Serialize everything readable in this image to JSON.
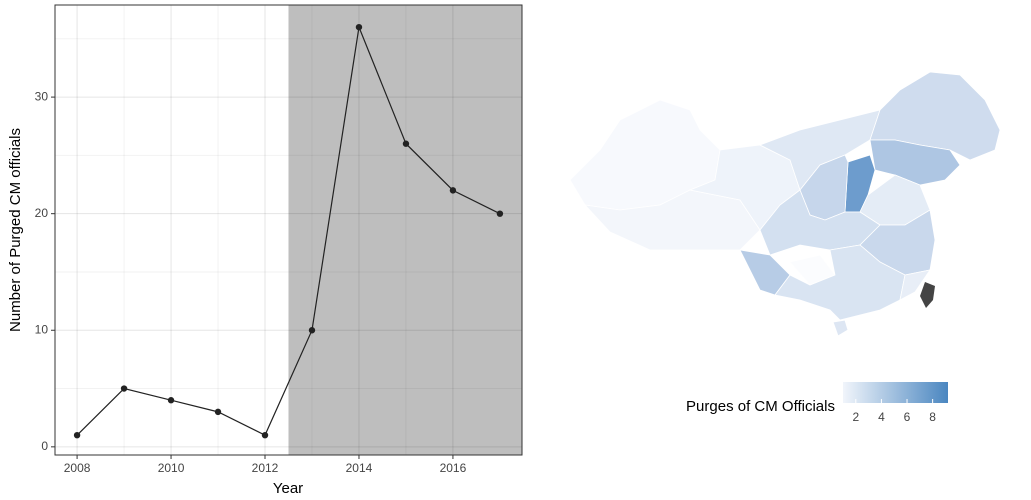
{
  "chart_data": [
    {
      "type": "line",
      "x_label": "Year",
      "y_label": "Number of Purged CM officials",
      "x": [
        2008,
        2009,
        2010,
        2011,
        2012,
        2013,
        2014,
        2015,
        2016,
        2017
      ],
      "values": [
        1,
        5,
        4,
        3,
        1,
        10,
        36,
        26,
        22,
        20
      ],
      "color": "#222222",
      "xlim": [
        2007.53,
        2017.47
      ],
      "ylim": [
        -0.7,
        37.9
      ],
      "xticks": [
        2008,
        2010,
        2012,
        2014,
        2016
      ],
      "yticks": [
        0,
        10,
        20,
        30
      ],
      "grid": true,
      "shaded_region": [
        2012.5,
        2017.47
      ],
      "shade_color": "#bebebe"
    },
    {
      "type": "map",
      "legend_title": "Purges of CM Officials",
      "legend_lim": [
        1,
        9.2
      ],
      "legend_ticks": [
        2,
        4,
        6,
        8
      ],
      "low_color": "#f1f5fb",
      "high_color": "#4a86c0"
    }
  ]
}
